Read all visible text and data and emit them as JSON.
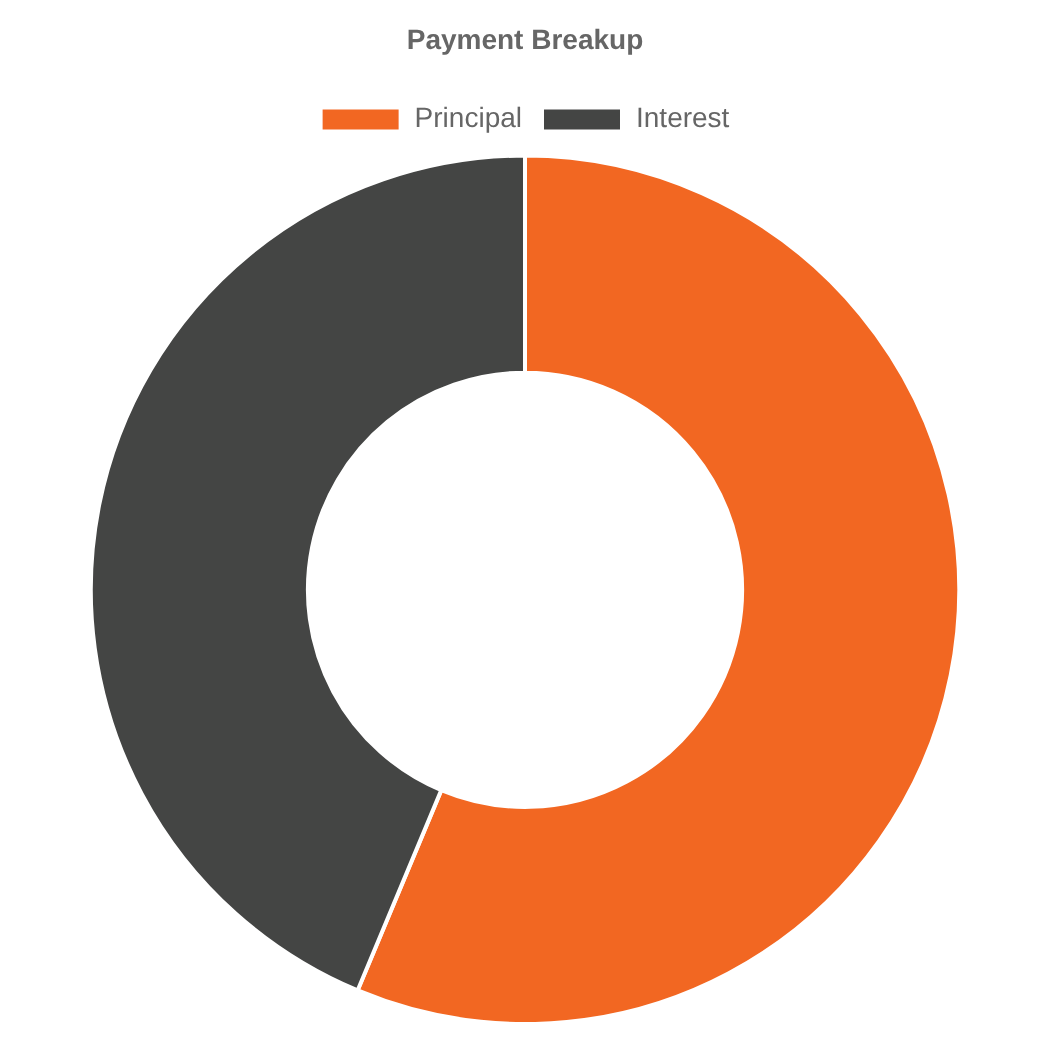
{
  "chart_data": {
    "type": "donut",
    "title": "Payment Breakup",
    "categories": [
      "Principal",
      "Interest"
    ],
    "values": [
      56.3,
      43.7
    ],
    "colors": [
      "#f26722",
      "#444544"
    ],
    "legend": "top"
  }
}
